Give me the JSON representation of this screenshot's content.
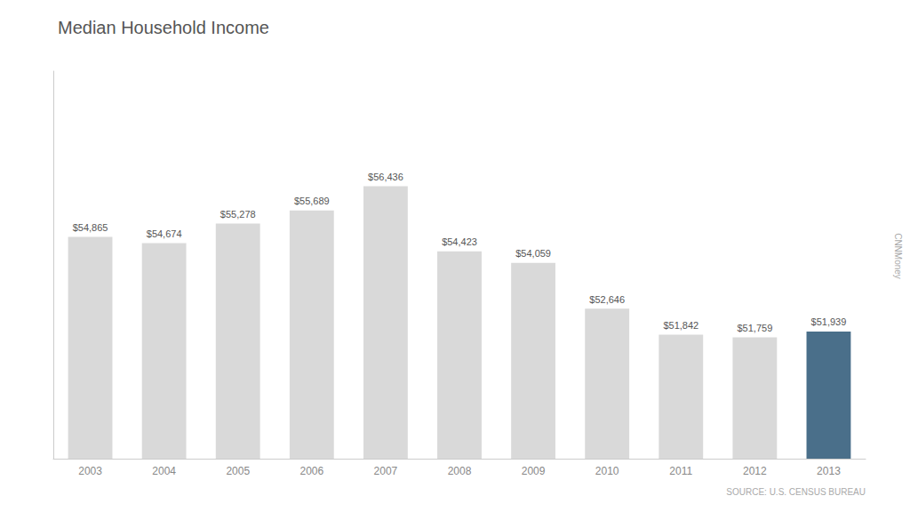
{
  "chart_data": {
    "type": "bar",
    "title": "Median Household Income",
    "categories": [
      "2003",
      "2004",
      "2005",
      "2006",
      "2007",
      "2008",
      "2009",
      "2010",
      "2011",
      "2012",
      "2013"
    ],
    "values": [
      54865,
      54674,
      55278,
      55689,
      56436,
      54423,
      54059,
      52646,
      51842,
      51759,
      51939
    ],
    "value_labels": [
      "$54,865",
      "$54,674",
      "$55,278",
      "$55,689",
      "$56,436",
      "$54,423",
      "$54,059",
      "$52,646",
      "$51,842",
      "$51,759",
      "$51,939"
    ],
    "colors": [
      "#d9d9d9",
      "#d9d9d9",
      "#d9d9d9",
      "#d9d9d9",
      "#d9d9d9",
      "#d9d9d9",
      "#d9d9d9",
      "#d9d9d9",
      "#d9d9d9",
      "#d9d9d9",
      "#4a6f8a"
    ],
    "ylim": [
      48000,
      60000
    ],
    "grid": false,
    "data_labels": true,
    "tick_labels": "x",
    "annotations": [
      "SOURCE: U.S. CENSUS BUREAU",
      "CNNMoney"
    ]
  }
}
